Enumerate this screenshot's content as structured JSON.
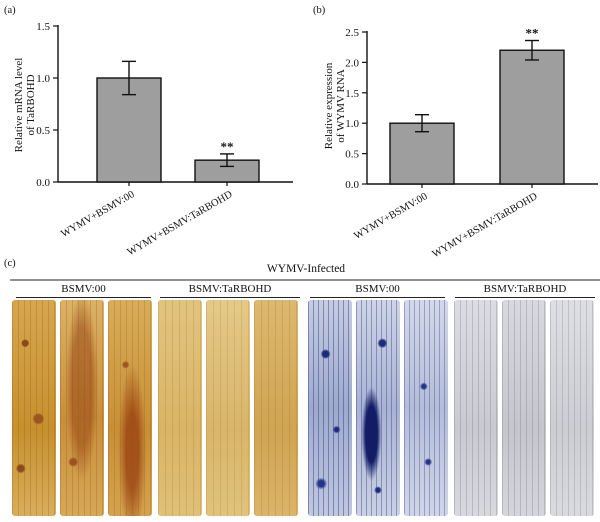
{
  "panel_labels": {
    "a": "(a)",
    "b": "(b)",
    "c": "(c)"
  },
  "chart_data": [
    {
      "type": "bar",
      "panel": "a",
      "ylabel_line1": "Relative mRNA level",
      "ylabel_line2": "of TaRBOHD",
      "xlabel": "",
      "categories": [
        "WYMV+BSMV:00",
        "WYMV+BSMV:TaRBOHD"
      ],
      "values": [
        1.0,
        0.21
      ],
      "errors": [
        0.16,
        0.06
      ],
      "significance": [
        "",
        "**"
      ],
      "ylim": [
        0,
        1.5
      ],
      "yticks": [
        "0.0",
        "0.5",
        "1.0",
        "1.5"
      ],
      "bar_color": "#9e9e9e"
    },
    {
      "type": "bar",
      "panel": "b",
      "ylabel_line1": "Relative expression",
      "ylabel_line2": "of WYMV RNA",
      "xlabel": "",
      "categories": [
        "WYMV+BSMV:00",
        "WYMV+BSMV:TaRBOHD"
      ],
      "values": [
        1.0,
        2.2
      ],
      "errors": [
        0.14,
        0.16
      ],
      "significance": [
        "",
        "**"
      ],
      "ylim": [
        0,
        2.5
      ],
      "yticks": [
        "0.0",
        "0.5",
        "1.0",
        "1.5",
        "2.0",
        "2.5"
      ],
      "bar_color": "#9e9e9e"
    }
  ],
  "photo_panel": {
    "title": "WYMV-Infected",
    "groups": [
      "BSMV:00",
      "BSMV:TaRBOHD",
      "BSMV:00",
      "BSMV:TaRBOHD"
    ],
    "stain_colors": [
      "#c8922e",
      "#d7b46a",
      "#2a3a8c",
      "#c8c8cc"
    ]
  }
}
